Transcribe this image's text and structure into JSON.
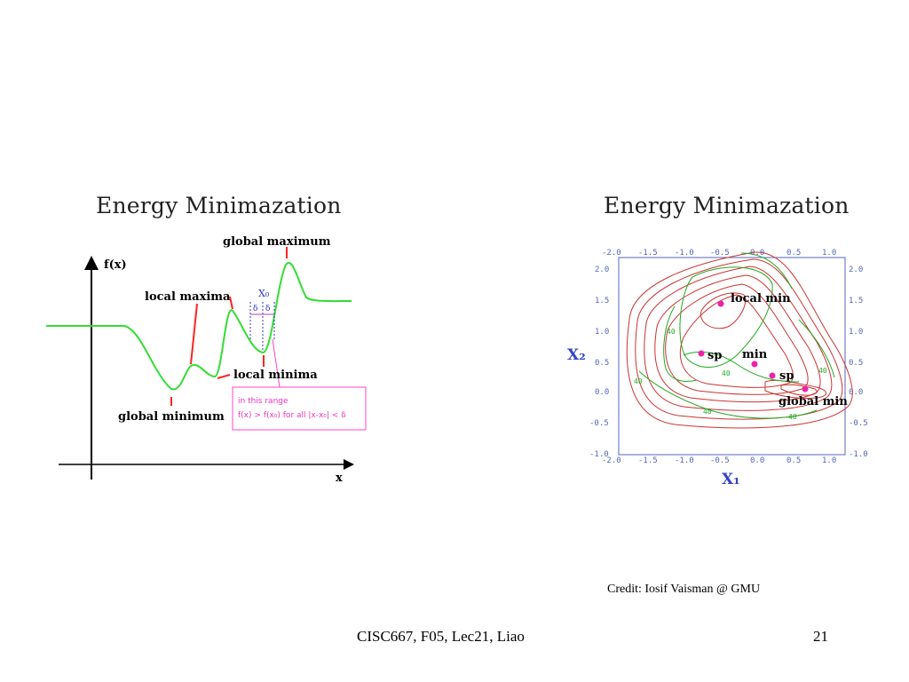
{
  "slide": {
    "credit": "Credit: Iosif Vaisman @ GMU",
    "footer": "CISC667, F05, Lec21, Liao",
    "page_number": "21"
  },
  "left_panel": {
    "title": "Energy Minimazation",
    "y_axis_label": "f(x)",
    "x_axis_label": "x",
    "labels": {
      "global_maximum": "global maximum",
      "local_maxima": "local maxima",
      "local_minima": "local minima",
      "global_minimum": "global minimum",
      "x0": "X₀",
      "delta_left": "δ",
      "delta_right": "δ"
    },
    "range_box": {
      "line1": "in this range",
      "line2": "f(x) > f(x₀) for all |x-x₀| < δ"
    }
  },
  "right_panel": {
    "title": "Energy Minimazation",
    "x_axis_label": "X₁",
    "y_axis_label": "X₂",
    "x_ticks": [
      "-2.0",
      "-1.5",
      "-1.0",
      "-0.5",
      "0.0",
      "0.5",
      "1.0"
    ],
    "y_ticks": [
      "2.0",
      "1.5",
      "1.0",
      "0.5",
      "0.0",
      "-0.5",
      "-1.0"
    ],
    "contour_value_label": "40",
    "points": {
      "local_min": "local min",
      "sp_left": "sp",
      "min": "min",
      "sp_right": "sp",
      "global_min": "global min"
    },
    "colors": {
      "red": "#cc3333",
      "green": "#22aa22",
      "point": "#ee22aa",
      "axis": "#5566bb"
    }
  }
}
